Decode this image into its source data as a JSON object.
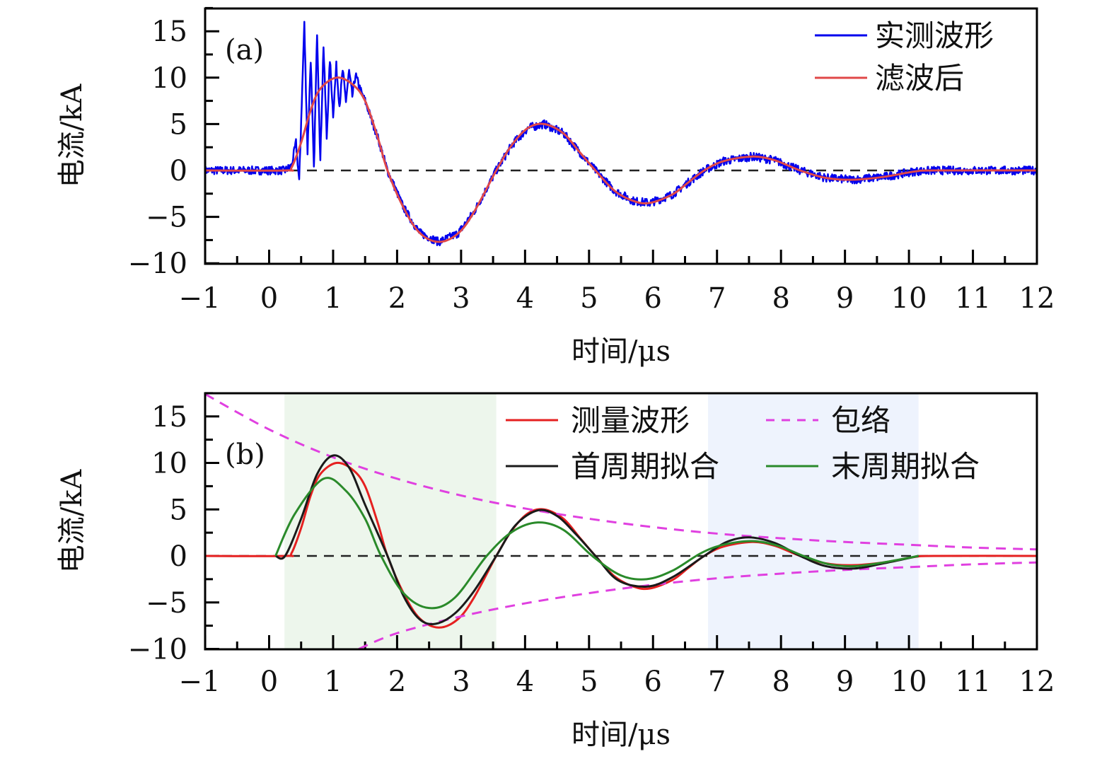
{
  "chart_data": [
    {
      "type": "line",
      "panel_label": "(a)",
      "xlabel": "时间/μs",
      "ylabel": "电流/kA",
      "xlim": [
        -1,
        12
      ],
      "ylim": [
        -10,
        17.5
      ],
      "xticks": [
        "−1",
        "0",
        "1",
        "2",
        "3",
        "4",
        "5",
        "6",
        "7",
        "8",
        "9",
        "10",
        "11",
        "12"
      ],
      "yticks": [
        "−10",
        "−5",
        "0",
        "5",
        "10",
        "15"
      ],
      "ytick_values": [
        -10,
        -5,
        0,
        5,
        10,
        15
      ],
      "zero_reference_line": {
        "y": 0,
        "style": "dashed",
        "color": "#000000"
      },
      "legend_position": "top-right",
      "series": [
        {
          "name": "实测波形",
          "color": "#0000ee",
          "noisy": true,
          "points": [
            [
              -1,
              0
            ],
            [
              0.25,
              0
            ],
            [
              0.35,
              0.5
            ],
            [
              0.42,
              3
            ],
            [
              0.47,
              -1.2
            ],
            [
              0.55,
              15.8
            ],
            [
              0.6,
              2
            ],
            [
              0.65,
              12
            ],
            [
              0.7,
              0
            ],
            [
              0.75,
              15
            ],
            [
              0.8,
              1
            ],
            [
              0.85,
              13.5
            ],
            [
              0.9,
              3.5
            ],
            [
              0.95,
              12
            ],
            [
              1.0,
              6
            ],
            [
              1.05,
              11.3
            ],
            [
              1.1,
              7
            ],
            [
              1.15,
              10.8
            ],
            [
              1.2,
              7.5
            ],
            [
              1.25,
              10.7
            ],
            [
              1.3,
              8
            ],
            [
              1.35,
              10.3
            ],
            [
              1.45,
              8.2
            ],
            [
              1.5,
              7.5
            ],
            [
              1.7,
              3.5
            ],
            [
              1.85,
              0
            ],
            [
              2.1,
              -4
            ],
            [
              2.35,
              -6.7
            ],
            [
              2.65,
              -7.7
            ],
            [
              2.95,
              -6.8
            ],
            [
              3.2,
              -4.5
            ],
            [
              3.55,
              0
            ],
            [
              3.8,
              2.8
            ],
            [
              4.05,
              4.6
            ],
            [
              4.3,
              5
            ],
            [
              4.6,
              4
            ],
            [
              4.85,
              2
            ],
            [
              5.1,
              0
            ],
            [
              5.4,
              -2.2
            ],
            [
              5.7,
              -3.3
            ],
            [
              5.95,
              -3.5
            ],
            [
              6.3,
              -2.6
            ],
            [
              6.55,
              -1.3
            ],
            [
              6.8,
              0
            ],
            [
              7.1,
              1
            ],
            [
              7.55,
              1.5
            ],
            [
              7.9,
              1.1
            ],
            [
              8.3,
              0
            ],
            [
              8.7,
              -0.8
            ],
            [
              9.1,
              -1
            ],
            [
              9.6,
              -0.7
            ],
            [
              10.1,
              -0.1
            ],
            [
              10.4,
              0
            ],
            [
              12,
              0
            ]
          ]
        },
        {
          "name": "滤波后",
          "color": "#e04848",
          "points": [
            [
              -1,
              0
            ],
            [
              0.25,
              0
            ],
            [
              0.35,
              0.3
            ],
            [
              0.5,
              3
            ],
            [
              0.65,
              6.5
            ],
            [
              0.8,
              8.8
            ],
            [
              1.05,
              10
            ],
            [
              1.3,
              9.3
            ],
            [
              1.5,
              7.5
            ],
            [
              1.7,
              3.5
            ],
            [
              1.85,
              0
            ],
            [
              2.1,
              -4
            ],
            [
              2.35,
              -6.7
            ],
            [
              2.65,
              -7.7
            ],
            [
              2.95,
              -6.8
            ],
            [
              3.2,
              -4.5
            ],
            [
              3.55,
              0
            ],
            [
              3.8,
              2.8
            ],
            [
              4.05,
              4.6
            ],
            [
              4.3,
              5
            ],
            [
              4.6,
              4
            ],
            [
              4.85,
              2
            ],
            [
              5.1,
              0
            ],
            [
              5.4,
              -2.2
            ],
            [
              5.7,
              -3.3
            ],
            [
              5.95,
              -3.5
            ],
            [
              6.3,
              -2.6
            ],
            [
              6.55,
              -1.3
            ],
            [
              6.8,
              0
            ],
            [
              7.1,
              1
            ],
            [
              7.55,
              1.5
            ],
            [
              7.9,
              1.1
            ],
            [
              8.3,
              0
            ],
            [
              8.7,
              -0.8
            ],
            [
              9.1,
              -1
            ],
            [
              9.6,
              -0.7
            ],
            [
              10.1,
              -0.1
            ],
            [
              10.4,
              0
            ],
            [
              12,
              0
            ]
          ]
        }
      ]
    },
    {
      "type": "line",
      "panel_label": "(b)",
      "xlabel": "时间/μs",
      "ylabel": "电流/kA",
      "xlim": [
        -1,
        12
      ],
      "ylim": [
        -10,
        17.5
      ],
      "xticks": [
        "−1",
        "0",
        "1",
        "2",
        "3",
        "4",
        "5",
        "6",
        "7",
        "8",
        "9",
        "10",
        "11",
        "12"
      ],
      "yticks": [
        "−10",
        "−5",
        "0",
        "5",
        "10",
        "15"
      ],
      "ytick_values": [
        -10,
        -5,
        0,
        5,
        10,
        15
      ],
      "zero_reference_line": {
        "y": 0,
        "style": "dashed",
        "color": "#000000"
      },
      "shaded_regions": [
        {
          "x": [
            0.24,
            3.55
          ],
          "color": "#edf6ec"
        },
        {
          "x": [
            6.86,
            10.15
          ],
          "color": "#eef3fd"
        }
      ],
      "legend_position": "top-right",
      "series": [
        {
          "name": "测量波形",
          "color": "#e52020",
          "points": [
            [
              -1,
              0
            ],
            [
              0.25,
              0
            ],
            [
              0.35,
              0.3
            ],
            [
              0.5,
              3
            ],
            [
              0.65,
              6.5
            ],
            [
              0.8,
              8.8
            ],
            [
              1.05,
              10
            ],
            [
              1.3,
              9.3
            ],
            [
              1.5,
              7.5
            ],
            [
              1.7,
              3.5
            ],
            [
              1.85,
              0
            ],
            [
              2.1,
              -4
            ],
            [
              2.35,
              -6.7
            ],
            [
              2.65,
              -7.7
            ],
            [
              2.95,
              -6.8
            ],
            [
              3.2,
              -4.5
            ],
            [
              3.55,
              0
            ],
            [
              3.8,
              2.8
            ],
            [
              4.05,
              4.6
            ],
            [
              4.3,
              5
            ],
            [
              4.6,
              4
            ],
            [
              4.85,
              2
            ],
            [
              5.1,
              0
            ],
            [
              5.4,
              -2.2
            ],
            [
              5.7,
              -3.3
            ],
            [
              5.95,
              -3.5
            ],
            [
              6.3,
              -2.6
            ],
            [
              6.55,
              -1.3
            ],
            [
              6.8,
              0
            ],
            [
              7.1,
              1
            ],
            [
              7.55,
              1.5
            ],
            [
              7.9,
              1.1
            ],
            [
              8.3,
              0
            ],
            [
              8.7,
              -0.8
            ],
            [
              9.1,
              -1
            ],
            [
              9.6,
              -0.7
            ],
            [
              10.1,
              -0.1
            ],
            [
              10.4,
              0
            ],
            [
              12,
              0
            ]
          ]
        },
        {
          "name": "包络",
          "color": "#e040e0",
          "dashed": true,
          "points": [
            [
              -1,
              17.4
            ],
            [
              0,
              13.6
            ],
            [
              1,
              10.6
            ],
            [
              2,
              8.3
            ],
            [
              3,
              6.5
            ],
            [
              4,
              5.1
            ],
            [
              5,
              4.0
            ],
            [
              6,
              3.1
            ],
            [
              7,
              2.4
            ],
            [
              8,
              1.9
            ],
            [
              9,
              1.5
            ],
            [
              10,
              1.2
            ],
            [
              11,
              0.9
            ],
            [
              12,
              0.7
            ]
          ]
        },
        {
          "name": "包络",
          "color": "#e040e0",
          "dashed": true,
          "legend": false,
          "points": [
            [
              1.4,
              -10
            ],
            [
              2,
              -8.3
            ],
            [
              3,
              -6.5
            ],
            [
              4,
              -5.1
            ],
            [
              5,
              -4.0
            ],
            [
              6,
              -3.1
            ],
            [
              7,
              -2.4
            ],
            [
              8,
              -1.9
            ],
            [
              9,
              -1.5
            ],
            [
              10,
              -1.2
            ],
            [
              11,
              -0.9
            ],
            [
              12,
              -0.7
            ]
          ]
        },
        {
          "name": "首周期拟合",
          "color": "#1a1a1a",
          "points": [
            [
              0.1,
              0
            ],
            [
              0.25,
              0
            ],
            [
              0.5,
              4
            ],
            [
              0.75,
              8.8
            ],
            [
              1.0,
              10.8
            ],
            [
              1.25,
              9.5
            ],
            [
              1.5,
              5.5
            ],
            [
              1.85,
              0
            ],
            [
              2.1,
              -4.3
            ],
            [
              2.35,
              -6.8
            ],
            [
              2.6,
              -7.3
            ],
            [
              2.9,
              -6.2
            ],
            [
              3.2,
              -3.8
            ],
            [
              3.55,
              0
            ],
            [
              3.85,
              3.3
            ],
            [
              4.2,
              4.9
            ],
            [
              4.5,
              4.3
            ],
            [
              4.8,
              2.3
            ],
            [
              5.1,
              0
            ],
            [
              5.45,
              -2.6
            ],
            [
              5.9,
              -3.3
            ],
            [
              6.3,
              -2.3
            ],
            [
              6.8,
              0
            ],
            [
              7.15,
              1.5
            ],
            [
              7.5,
              2.0
            ],
            [
              7.9,
              1.4
            ],
            [
              8.3,
              0
            ],
            [
              8.7,
              -1.1
            ],
            [
              9.15,
              -1.35
            ],
            [
              9.6,
              -0.8
            ],
            [
              10.15,
              0
            ]
          ]
        },
        {
          "name": "末周期拟合",
          "color": "#2a8a2a",
          "points": [
            [
              0.1,
              0
            ],
            [
              0.4,
              4.5
            ],
            [
              0.85,
              8.3
            ],
            [
              1.2,
              7.0
            ],
            [
              1.5,
              4
            ],
            [
              1.75,
              0
            ],
            [
              2.1,
              -4
            ],
            [
              2.5,
              -5.6
            ],
            [
              2.9,
              -4.5
            ],
            [
              3.4,
              0
            ],
            [
              3.8,
              2.6
            ],
            [
              4.2,
              3.6
            ],
            [
              4.6,
              2.8
            ],
            [
              5.05,
              0
            ],
            [
              5.5,
              -2.1
            ],
            [
              5.9,
              -2.5
            ],
            [
              6.3,
              -1.6
            ],
            [
              6.75,
              0.3
            ],
            [
              7.1,
              1.2
            ],
            [
              7.55,
              1.6
            ],
            [
              7.95,
              1.1
            ],
            [
              8.35,
              0
            ],
            [
              8.75,
              -0.9
            ],
            [
              9.15,
              -1.1
            ],
            [
              9.6,
              -0.7
            ],
            [
              10.15,
              0
            ]
          ]
        }
      ]
    }
  ]
}
